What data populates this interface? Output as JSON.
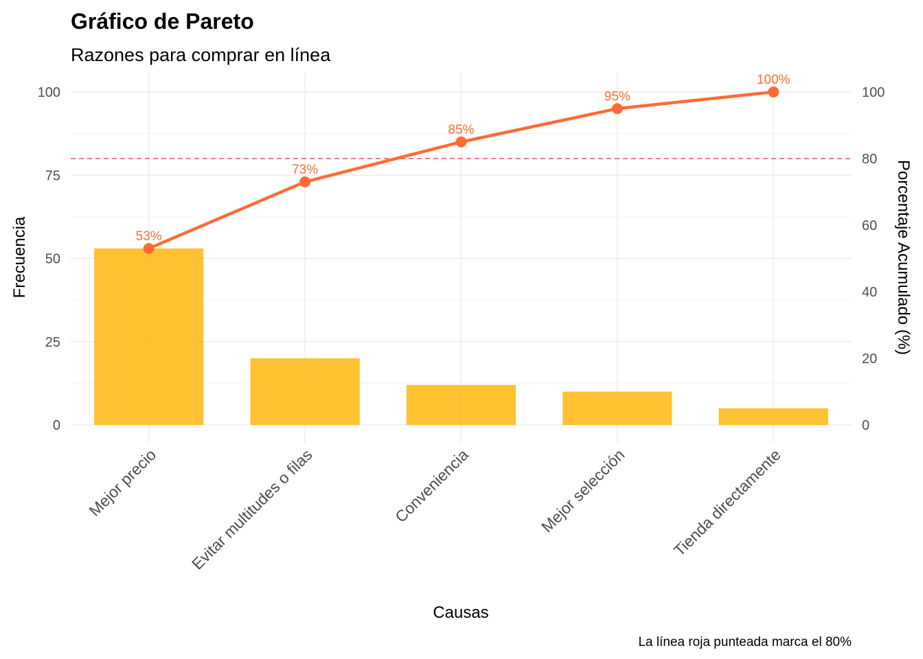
{
  "chart_data": {
    "type": "bar",
    "title": "Gráfico de Pareto",
    "subtitle": "Razones para comprar en línea",
    "xlabel": "Causas",
    "ylabel": "Frecuencia",
    "y2label": "Porcentaje Acumulado (%)",
    "caption": "La línea roja punteada marca el 80%",
    "categories": [
      "Mejor precio",
      "Evitar multitudes o filas",
      "Conveniencia",
      "Mejor selección",
      "Tienda directamente"
    ],
    "series": [
      {
        "type": "bar",
        "axis": "left",
        "values": [
          53,
          20,
          12,
          10,
          5
        ]
      },
      {
        "type": "line",
        "axis": "right",
        "values": [
          53,
          73,
          85,
          95,
          100
        ],
        "labels": [
          "53%",
          "73%",
          "85%",
          "95%",
          "100%"
        ]
      }
    ],
    "ylim": [
      0,
      100
    ],
    "yticks": [
      0,
      25,
      50,
      75,
      100
    ],
    "y2lim": [
      0,
      100
    ],
    "y2ticks": [
      0,
      20,
      40,
      60,
      80,
      100
    ],
    "reference_line": {
      "axis": "right",
      "value": 80,
      "style": "dashed"
    },
    "grid": true,
    "colors": {
      "bar": "#FFB300",
      "line": "#FF6B35",
      "reference": "#E8545A"
    }
  }
}
